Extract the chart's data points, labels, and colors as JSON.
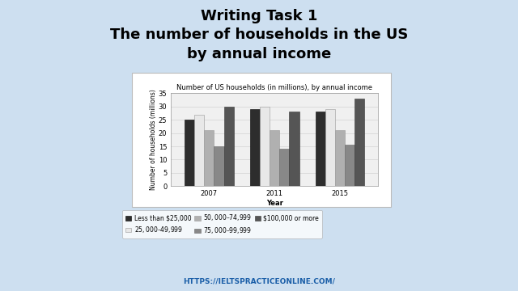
{
  "title_main": "Writing Task 1\nThe number of households in the US\nby annual income",
  "chart_title": "Number of US households (in millions), by annual income",
  "xlabel": "Year",
  "ylabel": "Number of households (millions)",
  "years": [
    "2007",
    "2011",
    "2015"
  ],
  "categories": [
    "Less than $25,000",
    "$25,000–$49,999",
    "$50,000–$74,999",
    "$75,000–$99,999",
    "$100,000 or more"
  ],
  "values": {
    "2007": [
      25,
      27,
      21,
      15,
      30
    ],
    "2011": [
      29,
      30,
      21,
      14,
      28
    ],
    "2015": [
      28,
      29,
      21,
      15.5,
      33
    ]
  },
  "bar_colors": [
    "#2d2d2d",
    "#e8e8e8",
    "#b0b0b0",
    "#888888",
    "#555555"
  ],
  "bar_edge_colors": [
    "#000000",
    "#999999",
    "#999999",
    "#666666",
    "#333333"
  ],
  "ylim": [
    0,
    35
  ],
  "yticks": [
    0,
    5,
    10,
    15,
    20,
    25,
    30,
    35
  ],
  "background_color": "#cddff0",
  "chart_bg": "#f0f0f0",
  "footer": "HTTPS://IELTSPRACTICEONLINE.COM/",
  "title_fontsize": 13,
  "chart_title_fontsize": 6,
  "legend_fontsize": 5.5,
  "axis_fontsize": 6,
  "tick_fontsize": 6
}
